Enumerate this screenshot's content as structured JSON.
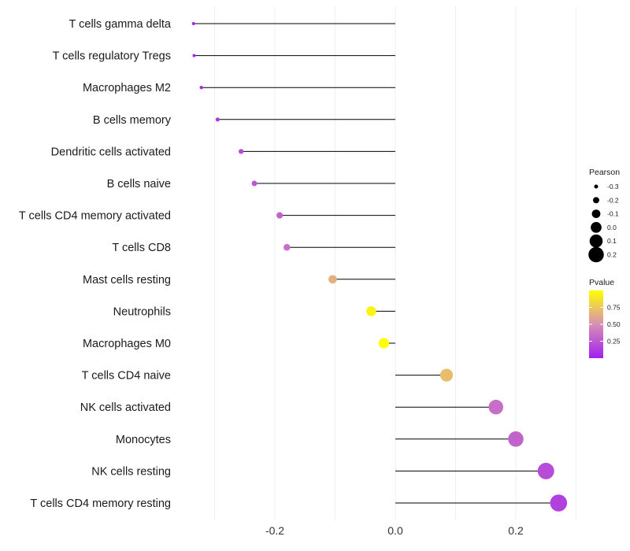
{
  "chart_data": {
    "type": "lollipop",
    "title": "",
    "xlabel": "",
    "ylabel": "",
    "xlim": [
      -0.335,
      0.32
    ],
    "x_ticks": [
      -0.2,
      0.0,
      0.2
    ],
    "x_tick_labels": [
      "-0.2",
      "0.0",
      "0.2"
    ],
    "grid": true,
    "categories": [
      "T cells gamma delta",
      "T cells regulatory  Tregs ",
      "Macrophages M2",
      "B cells memory",
      "Dendritic cells activated",
      "B cells naive",
      "T cells CD4 memory activated",
      "T cells CD8",
      "Mast cells resting",
      "Neutrophils",
      "Macrophages M0",
      "T cells CD4 naive",
      "NK cells activated",
      "Monocytes",
      "NK cells resting",
      "T cells CD4 memory resting"
    ],
    "pearson": [
      -0.335,
      -0.334,
      -0.322,
      -0.295,
      -0.256,
      -0.234,
      -0.192,
      -0.18,
      -0.104,
      -0.04,
      -0.019,
      0.085,
      0.167,
      0.2,
      0.25,
      0.271
    ],
    "pvalue": [
      0.03,
      0.04,
      0.05,
      0.1,
      0.2,
      0.25,
      0.3,
      0.35,
      0.65,
      0.95,
      1.0,
      0.7,
      0.35,
      0.3,
      0.2,
      0.15
    ],
    "legend": {
      "size": {
        "title": "Pearson",
        "labels": [
          "-0.3",
          "-0.2",
          "-0.1",
          "0.0",
          "0.1",
          "0.2"
        ],
        "values": [
          -0.3,
          -0.2,
          -0.1,
          0.0,
          0.1,
          0.2
        ]
      },
      "color": {
        "title": "Pvalue",
        "labels": [
          "0.75",
          "0.50",
          "0.25"
        ],
        "values": [
          0.75,
          0.5,
          0.25
        ],
        "range": [
          0.0,
          1.0
        ],
        "low_color": "#a020f0",
        "mid_color": "#d88fb4",
        "high_color": "#ffff00"
      },
      "position": "right"
    },
    "stem_color": "#000000",
    "grid_color": "#ebebeb"
  }
}
